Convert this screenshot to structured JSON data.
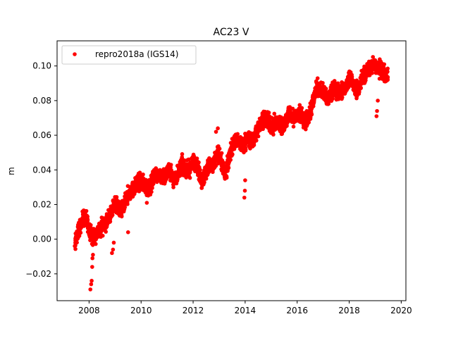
{
  "chart_data": {
    "type": "scatter",
    "title": "AC23 V",
    "xlabel": "",
    "ylabel": "m",
    "xlim": [
      2006.77,
      2020.18
    ],
    "ylim": [
      -0.0355,
      0.1145
    ],
    "xticks": [
      2008,
      2010,
      2012,
      2014,
      2016,
      2018,
      2020
    ],
    "xtick_labels": [
      "2008",
      "2010",
      "2012",
      "2014",
      "2016",
      "2018",
      "2020"
    ],
    "yticks": [
      -0.02,
      0.0,
      0.02,
      0.04,
      0.06,
      0.08,
      0.1
    ],
    "ytick_labels": [
      "−0.02",
      "0.00",
      "0.02",
      "0.04",
      "0.06",
      "0.08",
      "0.10"
    ],
    "grid": false,
    "legend": {
      "position": "top-left"
    },
    "series": [
      {
        "name": "repro2018a (IGS14)",
        "color": "#ff0000",
        "marker": "circle",
        "x": [
          2007.45,
          2007.55,
          2007.65,
          2007.75,
          2007.85,
          2007.95,
          2008.05,
          2008.15,
          2008.25,
          2008.35,
          2008.45,
          2008.55,
          2008.65,
          2008.75,
          2008.85,
          2008.95,
          2009.05,
          2009.15,
          2009.25,
          2009.35,
          2009.45,
          2009.55,
          2009.65,
          2009.75,
          2009.85,
          2009.95,
          2010.05,
          2010.15,
          2010.25,
          2010.35,
          2010.45,
          2010.55,
          2010.65,
          2010.75,
          2010.85,
          2010.95,
          2011.05,
          2011.15,
          2011.25,
          2011.35,
          2011.45,
          2011.55,
          2011.65,
          2011.75,
          2011.85,
          2011.95,
          2012.05,
          2012.15,
          2012.25,
          2012.35,
          2012.45,
          2012.55,
          2012.65,
          2012.75,
          2012.85,
          2012.95,
          2013.05,
          2013.15,
          2013.25,
          2013.35,
          2013.45,
          2013.55,
          2013.65,
          2013.75,
          2013.85,
          2013.95,
          2014.05,
          2014.15,
          2014.25,
          2014.35,
          2014.45,
          2014.55,
          2014.65,
          2014.75,
          2014.85,
          2014.95,
          2015.05,
          2015.15,
          2015.25,
          2015.35,
          2015.45,
          2015.55,
          2015.65,
          2015.75,
          2015.85,
          2015.95,
          2016.05,
          2016.15,
          2016.25,
          2016.35,
          2016.45,
          2016.55,
          2016.65,
          2016.75,
          2016.85,
          2016.95,
          2017.05,
          2017.15,
          2017.25,
          2017.35,
          2017.45,
          2017.55,
          2017.65,
          2017.75,
          2017.85,
          2017.95,
          2018.05,
          2018.15,
          2018.25,
          2018.35,
          2018.45,
          2018.55,
          2018.65,
          2018.75,
          2018.85,
          2018.95,
          2019.05,
          2019.15,
          2019.25,
          2019.35,
          2019.42
        ],
        "y": [
          -0.004,
          0.003,
          0.008,
          0.011,
          0.013,
          0.009,
          0.004,
          0.001,
          0.002,
          0.005,
          0.006,
          0.008,
          0.01,
          0.013,
          0.016,
          0.019,
          0.02,
          0.017,
          0.016,
          0.019,
          0.024,
          0.027,
          0.028,
          0.03,
          0.032,
          0.033,
          0.033,
          0.031,
          0.029,
          0.03,
          0.035,
          0.038,
          0.037,
          0.036,
          0.036,
          0.037,
          0.04,
          0.038,
          0.034,
          0.036,
          0.04,
          0.043,
          0.042,
          0.04,
          0.04,
          0.043,
          0.045,
          0.043,
          0.037,
          0.034,
          0.037,
          0.041,
          0.043,
          0.042,
          0.045,
          0.05,
          0.047,
          0.04,
          0.037,
          0.044,
          0.052,
          0.055,
          0.057,
          0.056,
          0.055,
          0.054,
          0.058,
          0.058,
          0.056,
          0.058,
          0.062,
          0.066,
          0.069,
          0.07,
          0.069,
          0.066,
          0.064,
          0.067,
          0.067,
          0.066,
          0.065,
          0.068,
          0.071,
          0.072,
          0.07,
          0.07,
          0.072,
          0.072,
          0.069,
          0.068,
          0.071,
          0.076,
          0.082,
          0.086,
          0.087,
          0.086,
          0.084,
          0.081,
          0.083,
          0.086,
          0.087,
          0.086,
          0.085,
          0.086,
          0.088,
          0.091,
          0.093,
          0.089,
          0.086,
          0.087,
          0.091,
          0.094,
          0.096,
          0.098,
          0.1,
          0.101,
          0.1,
          0.099,
          0.097,
          0.096,
          0.095
        ]
      }
    ],
    "outliers": {
      "x": [
        2008.05,
        2008.08,
        2008.1,
        2008.12,
        2008.13,
        2008.15,
        2008.88,
        2008.92,
        2008.95,
        2013.97,
        2013.99,
        2014.0,
        2019.05,
        2019.07,
        2019.1,
        2012.88,
        2012.95,
        2010.22,
        2009.5
      ],
      "y": [
        -0.029,
        -0.026,
        -0.024,
        -0.016,
        -0.011,
        -0.009,
        -0.008,
        -0.006,
        -0.002,
        0.024,
        0.028,
        0.034,
        0.071,
        0.074,
        0.08,
        0.062,
        0.064,
        0.021,
        0.004
      ]
    }
  }
}
